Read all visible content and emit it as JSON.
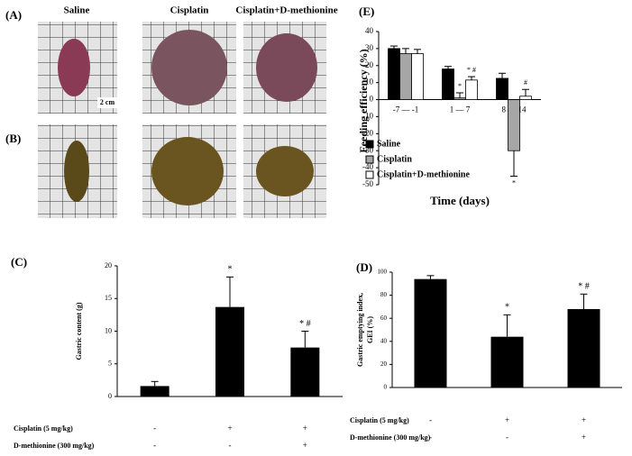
{
  "photo_panels": {
    "labels": [
      "(A)",
      "(B)"
    ],
    "columns": [
      "Saline",
      "Cisplatin",
      "Cisplatin+D-methionine"
    ],
    "scale_label": "2 cm"
  },
  "chart_data": [
    {
      "type": "bar",
      "panel_label": "(C)",
      "y_label": [
        "Gastric content (g)"
      ],
      "values": [
        1.6,
        13.7,
        7.5
      ],
      "errors": [
        0.7,
        4.6,
        2.5
      ],
      "annotations": [
        null,
        "*",
        "* #"
      ],
      "color": "#000000",
      "ylim": [
        0,
        20
      ],
      "yticks": [
        0,
        5,
        10,
        15,
        20
      ],
      "treatments": [
        {
          "name": "Cisplatin (5 mg/kg)",
          "marks": [
            "-",
            "+",
            "+"
          ]
        },
        {
          "name": "D-methionine (300 mg/kg)",
          "marks": [
            "-",
            "-",
            "+"
          ]
        }
      ]
    },
    {
      "type": "bar",
      "panel_label": "(D)",
      "y_label": [
        "Gastric emptying index,",
        "GEI (%)"
      ],
      "values": [
        94,
        44,
        68
      ],
      "errors": [
        3,
        19,
        13
      ],
      "annotations": [
        null,
        "*",
        "* #"
      ],
      "color": "#000000",
      "ylim": [
        0,
        100
      ],
      "yticks": [
        0,
        20,
        40,
        60,
        80,
        100
      ],
      "treatments": [
        {
          "name": "Cisplatin (5 mg/kg)",
          "marks": [
            "-",
            "+",
            "+"
          ]
        },
        {
          "name": "D-methionine (300 mg/kg)",
          "marks": [
            "-",
            "-",
            "+"
          ]
        }
      ]
    },
    {
      "type": "grouped-bar",
      "panel_label": "(E)",
      "y_label": [
        "Feeding efficiency (%)"
      ],
      "x_label": "Time (days)",
      "categories": [
        "-7 — -1",
        "1 — 7",
        "8 — 14"
      ],
      "series": [
        {
          "name": "Saline",
          "color": "#000000",
          "values": [
            30,
            18,
            12.5
          ],
          "errors": [
            1.5,
            1.5,
            3
          ],
          "annotations": [
            null,
            null,
            null
          ]
        },
        {
          "name": "Cisplatin",
          "color": "#a6a6a6",
          "values": [
            27,
            1,
            -30
          ],
          "errors": [
            3,
            3,
            15
          ],
          "annotations": [
            null,
            "*",
            "*"
          ]
        },
        {
          "name": "Cisplatin+D-methionine",
          "color": "#ffffff",
          "values": [
            27,
            11.5,
            2
          ],
          "errors": [
            2.5,
            2,
            4
          ],
          "annotations": [
            null,
            "* #",
            "#"
          ]
        }
      ],
      "ylim": [
        -50,
        40
      ],
      "yticks": [
        -50,
        -40,
        -30,
        -20,
        -10,
        0,
        10,
        20,
        30,
        40
      ],
      "legend": "lower-left"
    }
  ]
}
